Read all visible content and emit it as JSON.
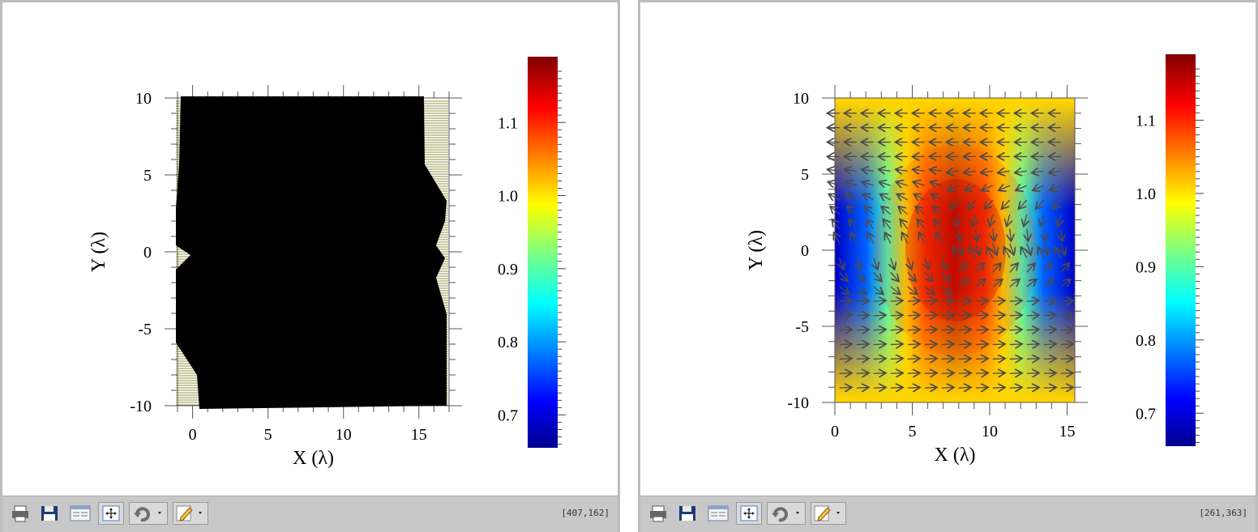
{
  "panels": [
    {
      "id": "left",
      "coord_readout": "[407,162]",
      "xlabel": "X (λ)",
      "ylabel": "Y (λ)",
      "x_ticks": [
        "0",
        "5",
        "10",
        "15"
      ],
      "y_ticks": [
        "10",
        "5",
        "0",
        "-5",
        "-10"
      ],
      "colorbar_ticks": [
        "1.1",
        "1.0",
        "0.9",
        "0.8",
        "0.7"
      ],
      "display": "dense black vector field overlay fully covering the colormap"
    },
    {
      "id": "right",
      "coord_readout": "[261,363]",
      "xlabel": "X (λ)",
      "ylabel": "Y (λ)",
      "x_ticks": [
        "0",
        "5",
        "10",
        "15"
      ],
      "y_ticks": [
        "10",
        "5",
        "0",
        "-5",
        "-10"
      ],
      "colorbar_ticks": [
        "1.1",
        "1.0",
        "0.9",
        "0.8",
        "0.7"
      ],
      "display": "jet colormap with gray arrow vector field"
    }
  ],
  "chart_data": [
    {
      "type": "heatmap",
      "xlabel": "X (λ)",
      "ylabel": "Y (λ)",
      "xlim": [
        -1,
        17
      ],
      "ylim": [
        -10,
        10
      ],
      "colorbar": {
        "colormap": "jet",
        "range": [
          0.655,
          1.19
        ],
        "ticks": [
          0.7,
          0.8,
          0.9,
          1.0,
          1.1
        ]
      },
      "overlay": "quiver (dense, black)"
    },
    {
      "type": "heatmap",
      "xlabel": "X (λ)",
      "ylabel": "Y (λ)",
      "xlim": [
        0,
        15.5
      ],
      "ylim": [
        -10,
        10
      ],
      "colorbar": {
        "colormap": "jet",
        "range": [
          0.655,
          1.19
        ],
        "ticks": [
          0.7,
          0.8,
          0.9,
          1.0,
          1.1
        ]
      },
      "field_features": [
        {
          "feature": "maximum",
          "x": 7.8,
          "y": 0,
          "value": 1.18
        },
        {
          "feature": "minimum",
          "x": 1.5,
          "y": 0,
          "value": 0.66
        },
        {
          "feature": "minimum",
          "x": 14.5,
          "y": 0,
          "value": 0.66
        },
        {
          "feature": "background",
          "value": 1.0
        }
      ],
      "overlay": "quiver (gray arrows)"
    }
  ],
  "toolbar": {
    "items": [
      {
        "name": "print-button",
        "icon": "printer-icon"
      },
      {
        "name": "save-button",
        "icon": "floppy-disk-icon"
      },
      {
        "name": "properties-button",
        "icon": "properties-icon"
      },
      {
        "name": "fit-view-button",
        "icon": "fit-arrows-icon"
      },
      {
        "name": "rotate-menu-button",
        "icon": "rotate-icon"
      },
      {
        "name": "edit-menu-button",
        "icon": "pencil-icon"
      }
    ]
  },
  "colors": {
    "toolbar_bg": "#c8c8c8",
    "panel_border": "#bdbdbd",
    "jet_dark_red": "#800000",
    "jet_dark_blue": "#00008f"
  }
}
